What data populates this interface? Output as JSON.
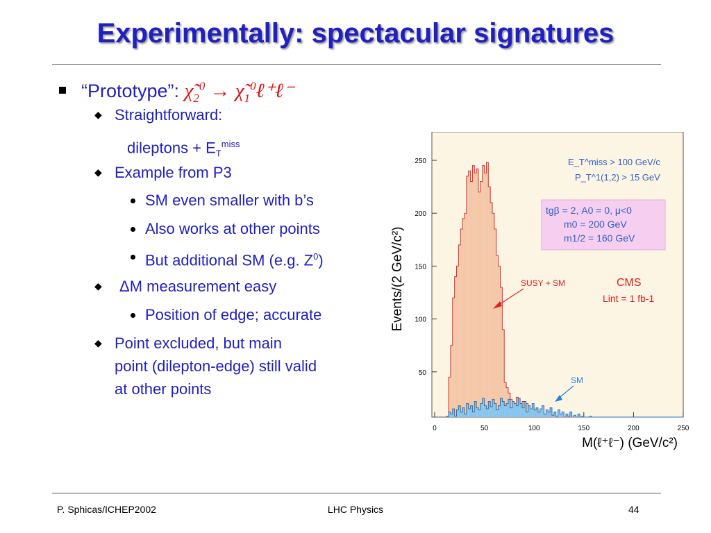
{
  "slide": {
    "title": "Experimentally: spectacular signatures",
    "bullet1": {
      "label": "“Prototype”:",
      "formula": {
        "chi": "χ̃",
        "sub2": "2",
        "sup0": "0",
        "arrow": "→",
        "sub1": "1",
        "lep": "ℓ⁺ℓ⁻"
      }
    },
    "items": [
      {
        "text": "Straightforward:"
      },
      {
        "text": "dileptons + E",
        "sub": "T",
        "sup": "miss"
      },
      {
        "text": "Example from P3"
      },
      {
        "text": "SM even smaller with b’s"
      },
      {
        "text": "Also works at other points"
      },
      {
        "text": "But additional SM (e.g. Z",
        "sup": "0",
        "tail": ")"
      },
      {
        "text": "ΔM measurement easy"
      },
      {
        "text": "Position of edge; accurate"
      },
      {
        "lines": [
          "Point excluded, but main",
          "point (dilepton-edge) still valid",
          "at other points"
        ]
      }
    ],
    "footer": {
      "left": "P. Sphicas/ICHEP2002",
      "center": "LHC Physics",
      "right": "44"
    }
  },
  "chart_data": {
    "type": "bar",
    "xlabel": "M(ℓ⁺ℓ⁻) (GeV/c²)",
    "ylabel": "Events/(2 GeV/c²)",
    "xlim": [
      0,
      250
    ],
    "ylim": [
      0,
      285
    ],
    "xticks": [
      0,
      50,
      100,
      150,
      200,
      250
    ],
    "yticks": [
      50,
      100,
      150,
      200,
      250
    ],
    "annotations": {
      "cut1": "E_T^miss > 100 GeV/c",
      "cut2": "P_T^1(1,2) > 15 GeV",
      "params": [
        "tgβ = 2,  A0 = 0,  μ<0",
        "m0 = 200 GeV",
        "m1/2 = 160 GeV"
      ],
      "experiment": "CMS",
      "lumi": "Lint = 1 fb-1",
      "susy_label": "SUSY + SM",
      "sm_label": "SM"
    },
    "bin_width": 2,
    "series": [
      {
        "name": "SUSY + SM",
        "color": "#f4c7a8",
        "edge": "#e03030",
        "x": [
          12,
          14,
          16,
          18,
          20,
          22,
          24,
          26,
          28,
          30,
          32,
          34,
          36,
          38,
          40,
          42,
          44,
          46,
          48,
          50,
          52,
          54,
          56,
          58,
          60,
          62,
          64,
          66,
          68,
          70,
          72,
          74,
          76,
          78,
          80,
          82,
          84,
          86,
          88,
          90,
          92,
          94,
          96,
          98,
          100,
          102,
          104,
          106,
          108,
          110,
          112,
          114,
          116,
          118,
          120,
          122,
          124,
          126,
          128,
          130,
          132,
          134,
          136,
          138,
          140,
          142,
          144,
          146,
          148,
          150,
          152,
          154,
          156,
          158,
          160,
          162,
          164,
          166,
          168,
          170,
          172,
          174,
          176,
          178,
          180,
          182,
          184,
          186,
          188,
          190,
          192,
          194,
          196,
          198,
          200,
          202,
          204,
          206,
          208,
          210,
          212,
          214,
          216,
          218,
          220,
          222,
          224,
          226,
          228,
          230,
          232,
          234,
          236,
          238,
          240,
          242,
          244,
          246,
          248
        ],
        "values": [
          8,
          45,
          75,
          120,
          140,
          150,
          170,
          185,
          195,
          200,
          235,
          240,
          230,
          245,
          238,
          242,
          220,
          230,
          245,
          238,
          248,
          225,
          210,
          200,
          185,
          160,
          150,
          130,
          90,
          40,
          35,
          30,
          24,
          22,
          18,
          26,
          20,
          17,
          22,
          15,
          20,
          18,
          14,
          16,
          12,
          14,
          10,
          12,
          13,
          9,
          8,
          11,
          7,
          9,
          6,
          8,
          10,
          6,
          7,
          5,
          6,
          8,
          4,
          6,
          5,
          7,
          4,
          3,
          5,
          4,
          3,
          5,
          2,
          4,
          3,
          4,
          2,
          3,
          5,
          2,
          3,
          2,
          4,
          1,
          3,
          2,
          1,
          3,
          2,
          1,
          2,
          3,
          1,
          2,
          1,
          2,
          1,
          1,
          2,
          1,
          1,
          2,
          1,
          1,
          1,
          2,
          1,
          1,
          1,
          1,
          2,
          1,
          1,
          1,
          1,
          1,
          1,
          1,
          1
        ]
      },
      {
        "name": "SM",
        "color": "#86c6ee",
        "edge": "#2a6fb8",
        "x": [
          12,
          14,
          16,
          18,
          20,
          22,
          24,
          26,
          28,
          30,
          32,
          34,
          36,
          38,
          40,
          42,
          44,
          46,
          48,
          50,
          52,
          54,
          56,
          58,
          60,
          62,
          64,
          66,
          68,
          70,
          72,
          74,
          76,
          78,
          80,
          82,
          84,
          86,
          88,
          90,
          92,
          94,
          96,
          98,
          100,
          102,
          104,
          106,
          108,
          110,
          112,
          114,
          116,
          118,
          120,
          122,
          124,
          126,
          128,
          130,
          132,
          134,
          136,
          138,
          140,
          142,
          144,
          146,
          148,
          150,
          152,
          154,
          156,
          158,
          160,
          162,
          164,
          166,
          168,
          170,
          172,
          174,
          176,
          178,
          180,
          182,
          184,
          186,
          188,
          190,
          192,
          194,
          196,
          198,
          200,
          202,
          204,
          206,
          208,
          210,
          212,
          214,
          216,
          218,
          220,
          222,
          224,
          226,
          228,
          230,
          232,
          234,
          236,
          238,
          240,
          242,
          244,
          246,
          248
        ],
        "values": [
          5,
          12,
          10,
          15,
          8,
          14,
          18,
          12,
          16,
          10,
          20,
          15,
          18,
          12,
          22,
          16,
          14,
          20,
          25,
          18,
          15,
          22,
          17,
          24,
          20,
          14,
          18,
          25,
          22,
          18,
          20,
          24,
          16,
          22,
          20,
          18,
          25,
          20,
          16,
          22,
          12,
          18,
          15,
          20,
          14,
          16,
          12,
          15,
          18,
          10,
          14,
          12,
          16,
          9,
          12,
          8,
          14,
          10,
          12,
          7,
          10,
          8,
          12,
          6,
          9,
          7,
          10,
          5,
          8,
          6,
          7,
          5,
          8,
          4,
          6,
          5,
          7,
          3,
          5,
          4,
          6,
          3,
          4,
          5,
          3,
          4,
          2,
          5,
          3,
          4,
          2,
          3,
          4,
          2,
          3,
          2,
          3,
          1,
          2,
          3,
          1,
          2,
          1,
          2,
          1,
          1,
          2,
          1,
          1,
          2,
          1,
          1,
          1,
          2,
          1,
          1,
          1,
          1,
          1
        ]
      }
    ]
  }
}
